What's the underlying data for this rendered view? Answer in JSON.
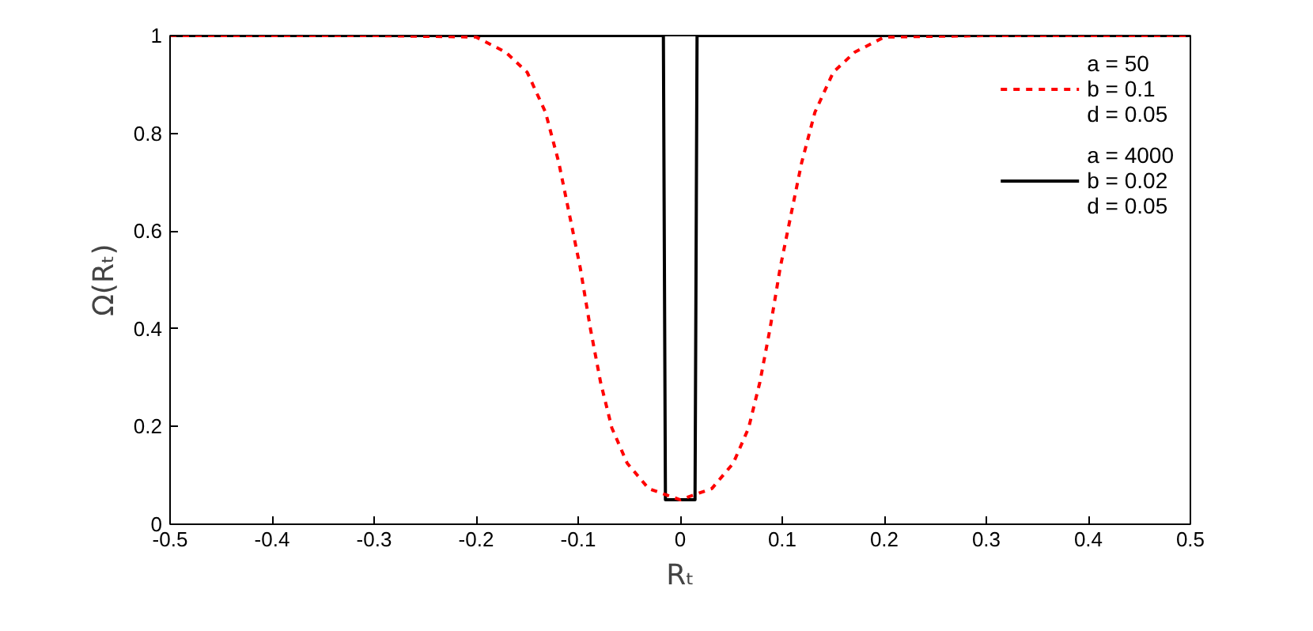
{
  "chart_data": {
    "type": "line",
    "xlabel": "Rₜ",
    "ylabel": "Ω(Rₜ)",
    "xlim": [
      -0.5,
      0.5
    ],
    "ylim": [
      0,
      1
    ],
    "xticks": [
      -0.5,
      -0.4,
      -0.3,
      -0.2,
      -0.1,
      0,
      0.1,
      0.2,
      0.3,
      0.4,
      0.5
    ],
    "yticks": [
      0,
      0.2,
      0.4,
      0.6,
      0.8,
      1
    ],
    "grid": false,
    "legend": "top right",
    "marker": "none",
    "series": [
      {
        "name": "a = 50\nb = 0.1\nd = 0.05",
        "color": "#ff0000",
        "line_style": "dashed",
        "x": [
          -0.5,
          -0.3,
          -0.2,
          -0.171,
          -0.15,
          -0.132,
          -0.119,
          -0.109,
          -0.098,
          -0.088,
          -0.078,
          -0.067,
          -0.052,
          -0.031,
          0,
          0.031,
          0.052,
          0.067,
          0.078,
          0.088,
          0.098,
          0.109,
          0.119,
          0.132,
          0.15,
          0.171,
          0.2,
          0.3,
          0.5
        ],
        "values": [
          1,
          1,
          0.997,
          0.966,
          0.925,
          0.843,
          0.74,
          0.638,
          0.525,
          0.4,
          0.29,
          0.197,
          0.125,
          0.073,
          0.05,
          0.073,
          0.125,
          0.197,
          0.29,
          0.4,
          0.525,
          0.638,
          0.74,
          0.843,
          0.925,
          0.966,
          0.997,
          1,
          1
        ]
      },
      {
        "name": "a = 4000\nb = 0.02\nd = 0.05",
        "color": "#000000",
        "line_style": "solid",
        "x": [
          -0.5,
          -0.0165,
          -0.0145,
          0.0145,
          0.0165,
          0.5
        ],
        "values": [
          1,
          1,
          0.05,
          0.05,
          1,
          1
        ]
      }
    ]
  }
}
